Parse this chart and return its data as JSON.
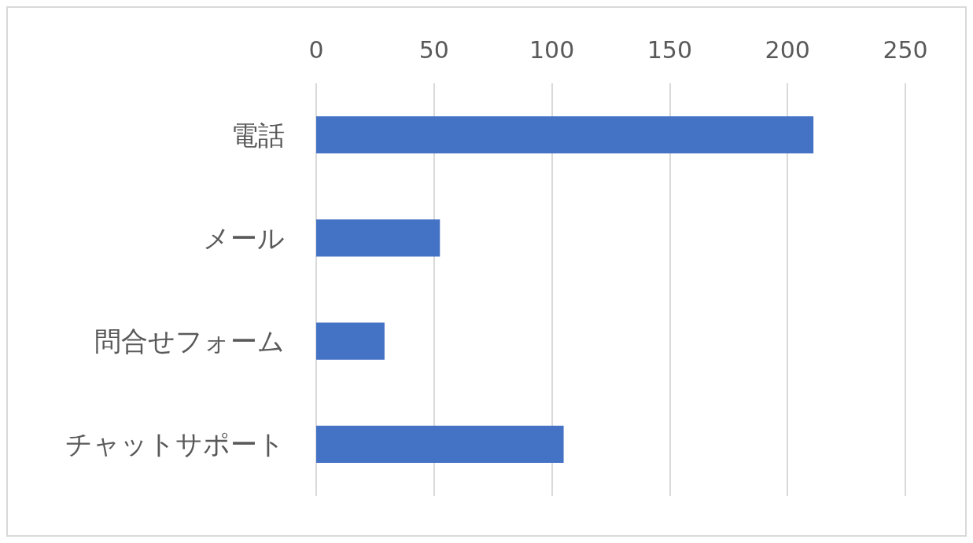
{
  "chart_data": {
    "type": "bar",
    "orientation": "horizontal",
    "categories": [
      "電話",
      "メール",
      "問合せフォーム",
      "チャットサポート"
    ],
    "values": [
      211,
      52.5,
      29,
      105
    ],
    "color": "#4472c4",
    "xlim": [
      0,
      250
    ],
    "xticks": [
      0,
      50,
      100,
      150,
      200,
      250
    ],
    "grid": "x"
  }
}
